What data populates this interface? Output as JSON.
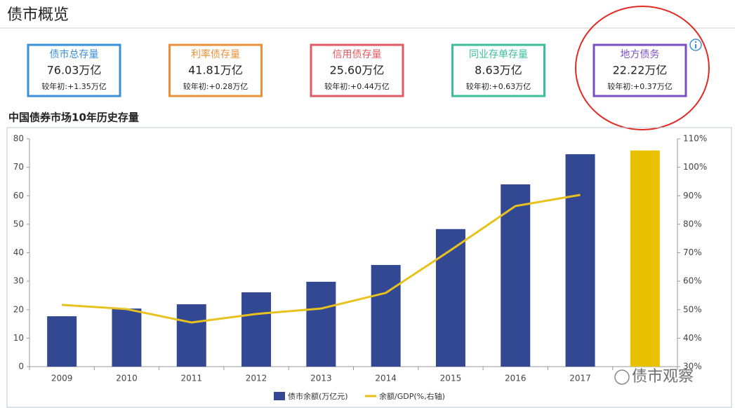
{
  "header": {
    "title": "债市概览"
  },
  "cards": [
    {
      "label": "债市总存量",
      "value": "76.03万亿",
      "change": "较年初:+1.35万亿",
      "color": "#3a8fd8"
    },
    {
      "label": "利率债存量",
      "value": "41.81万亿",
      "change": "较年初:+0.28万亿",
      "color": "#e8913a"
    },
    {
      "label": "信用债存量",
      "value": "25.60万亿",
      "change": "较年初:+0.44万亿",
      "color": "#e05a64"
    },
    {
      "label": "同业存单存量",
      "value": "8.63万亿",
      "change": "较年初:+0.63万亿",
      "color": "#3bbf98"
    },
    {
      "label": "地方债务",
      "value": "22.22万亿",
      "change": "较年初:+0.37万亿",
      "color": "#7a4fc2"
    }
  ],
  "watermark": "债市观察",
  "chart_data": {
    "type": "bar",
    "title": "中国债券市场10年历史存量",
    "categories": [
      "2009",
      "2010",
      "2011",
      "2012",
      "2013",
      "2014",
      "2015",
      "2016",
      "2017",
      null
    ],
    "series": [
      {
        "name": "债市余额(万亿元)",
        "type": "bar",
        "color": "#334893",
        "colors": [
          "#334893",
          "#334893",
          "#334893",
          "#334893",
          "#334893",
          "#334893",
          "#334893",
          "#334893",
          "#334893",
          "#e8c100"
        ],
        "values": [
          17.7,
          20.4,
          21.9,
          26.1,
          29.8,
          35.7,
          48.3,
          64.0,
          74.6,
          75.9
        ]
      },
      {
        "name": "余额/GDP(%,右轴)",
        "type": "line",
        "axis": "y2",
        "color": "#e8c21c",
        "values": [
          51.7,
          50.2,
          45.5,
          48.5,
          50.4,
          55.9,
          70.9,
          86.4,
          90.3,
          null
        ]
      }
    ],
    "ylim": [
      0,
      80
    ],
    "yticks": [
      0,
      10,
      20,
      30,
      40,
      50,
      60,
      70,
      80
    ],
    "y2lim": [
      30,
      110
    ],
    "y2ticks": [
      {
        "value": 30,
        "label": "30%"
      },
      {
        "value": 40,
        "label": "40%"
      },
      {
        "value": 50,
        "label": "50%"
      },
      {
        "value": 60,
        "label": "60%"
      },
      {
        "value": 70,
        "label": "70%"
      },
      {
        "value": 80,
        "label": "80%"
      },
      {
        "value": 90,
        "label": "90%"
      },
      {
        "value": 100,
        "label": "100%"
      },
      {
        "value": 110,
        "label": "110%"
      }
    ],
    "grid": false,
    "legend": "bottom"
  }
}
